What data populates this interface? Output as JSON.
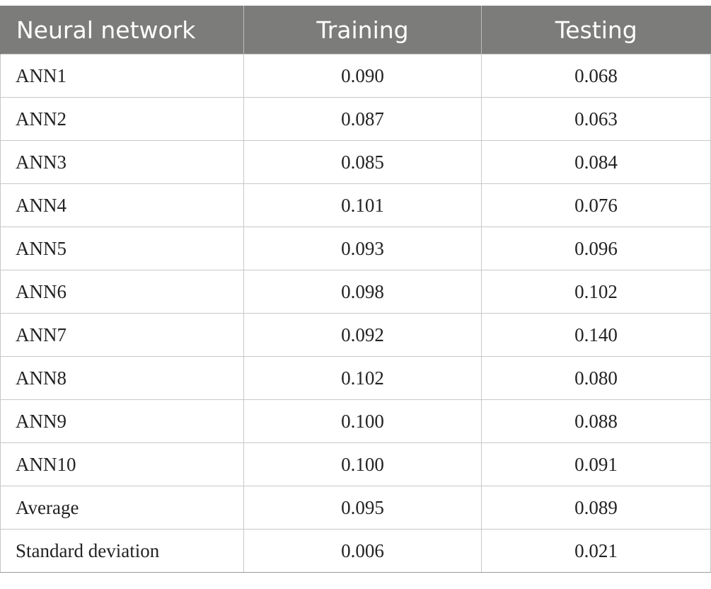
{
  "table": {
    "headers": [
      "Neural network",
      "Training",
      "Testing"
    ],
    "rows": [
      [
        "ANN1",
        "0.090",
        "0.068"
      ],
      [
        "ANN2",
        "0.087",
        "0.063"
      ],
      [
        "ANN3",
        "0.085",
        "0.084"
      ],
      [
        "ANN4",
        "0.101",
        "0.076"
      ],
      [
        "ANN5",
        "0.093",
        "0.096"
      ],
      [
        "ANN6",
        "0.098",
        "0.102"
      ],
      [
        "ANN7",
        "0.092",
        "0.140"
      ],
      [
        "ANN8",
        "0.102",
        "0.080"
      ],
      [
        "ANN9",
        "0.100",
        "0.088"
      ],
      [
        "ANN10",
        "0.100",
        "0.091"
      ],
      [
        "Average",
        "0.095",
        "0.089"
      ],
      [
        "Standard deviation",
        "0.006",
        "0.021"
      ]
    ]
  },
  "colors": {
    "header_bg": "#7c7c7b",
    "header_text": "#ffffff",
    "grid": "#c8c8c8"
  }
}
